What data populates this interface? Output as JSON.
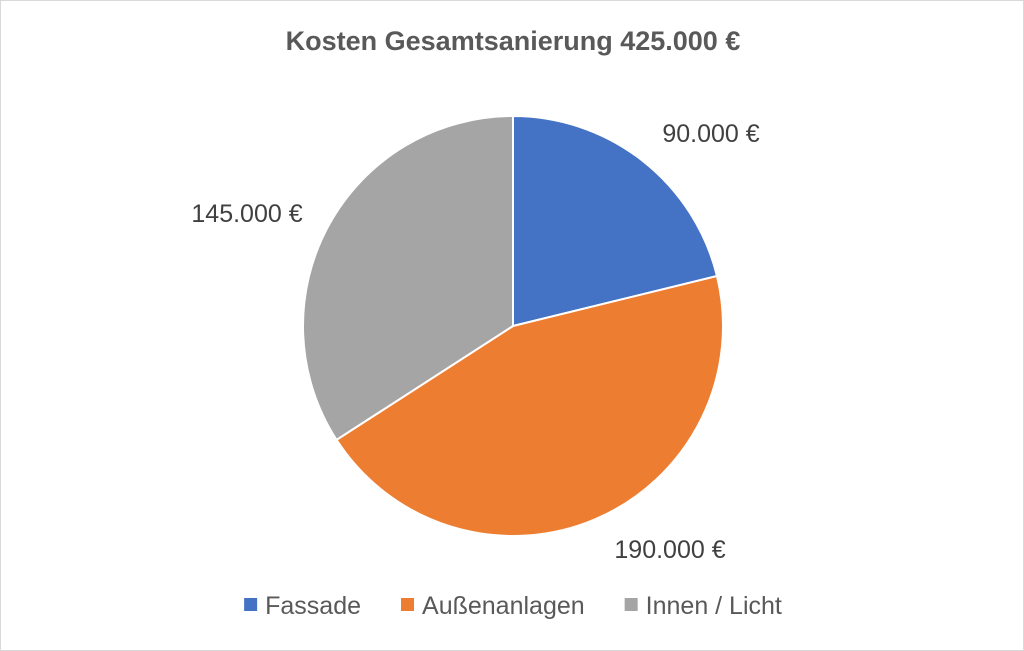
{
  "chart_data": {
    "type": "pie",
    "title": "Kosten Gesamtsanierung 425.000 €",
    "total": 425000,
    "slices": [
      {
        "name": "Fassade",
        "value": 90000,
        "label": "90.000 €",
        "color": "#4472C4"
      },
      {
        "name": "Außenanlagen",
        "value": 190000,
        "label": "190.000 €",
        "color": "#ED7D31"
      },
      {
        "name": "Innen / Licht",
        "value": 145000,
        "label": "145.000 €",
        "color": "#A5A5A5"
      }
    ],
    "start_angle": "12 o'clock",
    "direction": "clockwise",
    "legend_position": "bottom"
  }
}
